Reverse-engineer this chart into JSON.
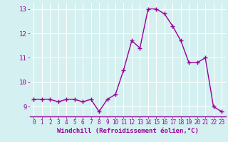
{
  "x": [
    0,
    1,
    2,
    3,
    4,
    5,
    6,
    7,
    8,
    9,
    10,
    11,
    12,
    13,
    14,
    15,
    16,
    17,
    18,
    19,
    20,
    21,
    22,
    23
  ],
  "y": [
    9.3,
    9.3,
    9.3,
    9.2,
    9.3,
    9.3,
    9.2,
    9.3,
    8.8,
    9.3,
    9.5,
    10.5,
    11.7,
    11.4,
    13.0,
    13.0,
    12.8,
    12.3,
    11.7,
    10.8,
    10.8,
    11.0,
    9.0,
    8.8
  ],
  "line_color": "#990099",
  "marker": "+",
  "marker_size": 4,
  "xlabel": "Windchill (Refroidissement éolien,°C)",
  "tick_color": "#990099",
  "bg_color": "#d4f0f0",
  "grid_color": "#ffffff",
  "ylim": [
    8.6,
    13.25
  ],
  "xlim": [
    -0.5,
    23.5
  ],
  "yticks": [
    9,
    10,
    11,
    12,
    13
  ],
  "xticks": [
    0,
    1,
    2,
    3,
    4,
    5,
    6,
    7,
    8,
    9,
    10,
    11,
    12,
    13,
    14,
    15,
    16,
    17,
    18,
    19,
    20,
    21,
    22,
    23
  ],
  "linewidth": 1.0
}
